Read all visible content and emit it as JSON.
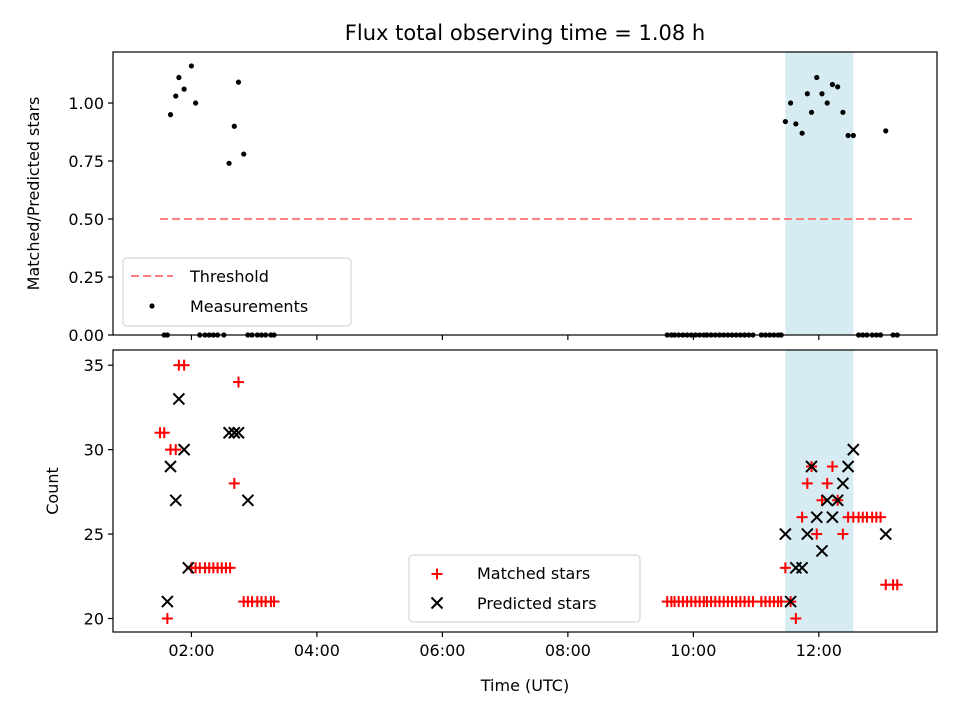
{
  "chart_data": [
    {
      "type": "scatter",
      "title": "Flux total observing time = 1.08 h",
      "xlabel": "",
      "ylabel": "Matched/Predicted stars",
      "ylim": [
        0,
        1.22
      ],
      "yticks": [
        "0.00",
        "0.25",
        "0.50",
        "0.75",
        "1.00"
      ],
      "shaded_span": {
        "start": "11:28",
        "end": "12:33",
        "color": "#add8e6"
      },
      "legend": {
        "position": "lower left",
        "entries": [
          "Threshold",
          "Measurements"
        ]
      },
      "threshold": {
        "name": "Threshold",
        "value": 0.5,
        "x_start": "01:30",
        "x_end": "13:30",
        "color": "#ff7f7f",
        "style": "dashed"
      },
      "series": [
        {
          "name": "Measurements",
          "color": "#000000",
          "marker": "dot",
          "x": [
            "01:34",
            "01:37",
            "01:40",
            "01:45",
            "01:48",
            "01:53",
            "02:00",
            "02:04",
            "02:08",
            "02:13",
            "02:17",
            "02:21",
            "02:25",
            "02:31",
            "02:36",
            "02:41",
            "02:45",
            "02:50",
            "02:54",
            "02:58",
            "03:03",
            "03:07",
            "03:11",
            "03:16",
            "03:19",
            "09:35",
            "09:39",
            "09:42",
            "09:46",
            "09:50",
            "09:54",
            "09:58",
            "10:02",
            "10:06",
            "10:10",
            "10:13",
            "10:17",
            "10:21",
            "10:25",
            "10:29",
            "10:33",
            "10:37",
            "10:41",
            "10:45",
            "10:49",
            "10:53",
            "10:57",
            "11:05",
            "11:09",
            "11:13",
            "11:17",
            "11:21",
            "11:24",
            "11:28",
            "11:33",
            "11:38",
            "11:44",
            "11:49",
            "11:53",
            "11:58",
            "12:03",
            "12:08",
            "12:13",
            "12:18",
            "12:23",
            "12:28",
            "12:33",
            "12:38",
            "12:42",
            "12:46",
            "12:51",
            "12:55",
            "12:59",
            "13:04",
            "13:11",
            "13:15"
          ],
          "y": [
            0,
            0,
            0.95,
            1.03,
            1.11,
            1.06,
            1.16,
            1.0,
            0,
            0,
            0,
            0,
            0,
            0,
            0.74,
            0.9,
            1.09,
            0.78,
            0,
            0,
            0,
            0,
            0,
            0,
            0,
            0,
            0,
            0,
            0,
            0,
            0,
            0,
            0,
            0,
            0,
            0,
            0,
            0,
            0,
            0,
            0,
            0,
            0,
            0,
            0,
            0,
            0,
            0,
            0,
            0,
            0,
            0,
            0,
            0.92,
            1.0,
            0.91,
            0.87,
            1.04,
            0.96,
            1.11,
            1.04,
            1.0,
            1.08,
            1.07,
            0.96,
            0.86,
            0.86,
            0,
            0,
            0,
            0,
            0,
            0,
            0.88,
            0,
            0
          ]
        }
      ]
    },
    {
      "type": "scatter",
      "title": "",
      "xlabel": "Time (UTC)",
      "ylabel": "Count",
      "ylim": [
        19.2,
        35.9
      ],
      "yticks": [
        "20",
        "25",
        "30",
        "35"
      ],
      "xlim": [
        "00:45",
        "13:53"
      ],
      "xticks": [
        "02:00",
        "04:00",
        "06:00",
        "08:00",
        "10:00",
        "12:00"
      ],
      "shaded_span": {
        "start": "11:28",
        "end": "12:33",
        "color": "#add8e6"
      },
      "legend": {
        "position": "lower center",
        "entries": [
          "Matched stars",
          "Predicted stars"
        ]
      },
      "series": [
        {
          "name": "Matched stars",
          "color": "#ff0000",
          "marker": "plus",
          "x": [
            "01:30",
            "01:34",
            "01:37",
            "01:40",
            "01:45",
            "01:48",
            "01:53",
            "02:00",
            "02:04",
            "02:08",
            "02:13",
            "02:17",
            "02:21",
            "02:25",
            "02:29",
            "02:33",
            "02:37",
            "02:41",
            "02:45",
            "02:50",
            "02:54",
            "02:58",
            "03:03",
            "03:07",
            "03:11",
            "03:16",
            "03:19",
            "09:35",
            "09:39",
            "09:42",
            "09:46",
            "09:50",
            "09:54",
            "09:58",
            "10:02",
            "10:06",
            "10:10",
            "10:13",
            "10:17",
            "10:21",
            "10:25",
            "10:29",
            "10:33",
            "10:37",
            "10:41",
            "10:45",
            "10:49",
            "10:53",
            "10:57",
            "11:05",
            "11:09",
            "11:13",
            "11:17",
            "11:21",
            "11:24",
            "11:28",
            "11:33",
            "11:38",
            "11:44",
            "11:49",
            "11:53",
            "11:58",
            "12:03",
            "12:08",
            "12:13",
            "12:18",
            "12:23",
            "12:28",
            "12:33",
            "12:38",
            "12:42",
            "12:46",
            "12:51",
            "12:55",
            "12:59",
            "13:04",
            "13:11",
            "13:15"
          ],
          "y": [
            31,
            31,
            20,
            30,
            30,
            35,
            35,
            23,
            23,
            23,
            23,
            23,
            23,
            23,
            23,
            23,
            23,
            28,
            34,
            21,
            21,
            21,
            21,
            21,
            21,
            21,
            21,
            21,
            21,
            21,
            21,
            21,
            21,
            21,
            21,
            21,
            21,
            21,
            21,
            21,
            21,
            21,
            21,
            21,
            21,
            21,
            21,
            21,
            21,
            21,
            21,
            21,
            21,
            21,
            21,
            23,
            21,
            20,
            26,
            28,
            29,
            25,
            27,
            28,
            29,
            27,
            25,
            26,
            26,
            26,
            26,
            26,
            26,
            26,
            26,
            22,
            22,
            22
          ]
        },
        {
          "name": "Predicted stars",
          "color": "#000000",
          "marker": "x",
          "x": [
            "01:37",
            "01:40",
            "01:45",
            "01:48",
            "01:53",
            "01:57",
            "02:36",
            "02:41",
            "02:45",
            "02:54",
            "11:28",
            "11:33",
            "11:38",
            "11:44",
            "11:49",
            "11:53",
            "11:58",
            "12:03",
            "12:08",
            "12:13",
            "12:18",
            "12:23",
            "12:28",
            "12:33",
            "13:04"
          ],
          "y": [
            21,
            29,
            27,
            33,
            30,
            23,
            31,
            31,
            31,
            27,
            25,
            21,
            23,
            23,
            25,
            29,
            26,
            24,
            27,
            26,
            27,
            28,
            29,
            30,
            25
          ]
        }
      ]
    }
  ]
}
